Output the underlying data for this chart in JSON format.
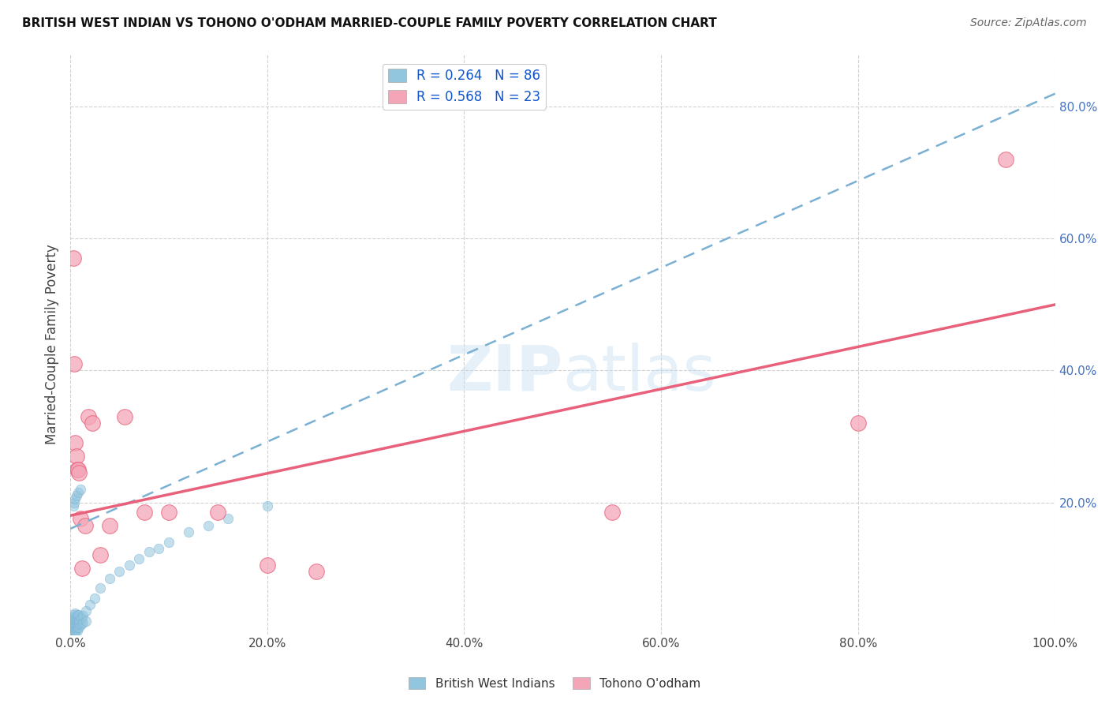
{
  "title": "BRITISH WEST INDIAN VS TOHONO O'ODHAM MARRIED-COUPLE FAMILY POVERTY CORRELATION CHART",
  "source": "Source: ZipAtlas.com",
  "ylabel": "Married-Couple Family Poverty",
  "xmin": 0.0,
  "xmax": 1.0,
  "ymin": 0.0,
  "ymax": 0.88,
  "xticks": [
    0.0,
    0.2,
    0.4,
    0.6,
    0.8,
    1.0
  ],
  "yticks": [
    0.2,
    0.4,
    0.6,
    0.8
  ],
  "ytick_labels": [
    "20.0%",
    "40.0%",
    "60.0%",
    "80.0%"
  ],
  "xtick_labels": [
    "0.0%",
    "20.0%",
    "40.0%",
    "60.0%",
    "80.0%",
    "100.0%"
  ],
  "legend1_label": "British West Indians",
  "legend2_label": "Tohono O'odham",
  "R1": "0.264",
  "N1": "86",
  "R2": "0.568",
  "N2": "23",
  "color_blue": "#92c5de",
  "color_pink": "#f4a6b8",
  "color_blue_line": "#7ab0d4",
  "color_pink_line": "#e8607a",
  "watermark_zip": "ZIP",
  "watermark_atlas": "atlas",
  "blue_scatter_x": [
    0.001,
    0.001,
    0.001,
    0.001,
    0.001,
    0.001,
    0.001,
    0.001,
    0.001,
    0.001,
    0.002,
    0.002,
    0.002,
    0.002,
    0.002,
    0.002,
    0.002,
    0.002,
    0.002,
    0.002,
    0.003,
    0.003,
    0.003,
    0.003,
    0.003,
    0.003,
    0.003,
    0.003,
    0.003,
    0.003,
    0.004,
    0.004,
    0.004,
    0.004,
    0.004,
    0.004,
    0.004,
    0.004,
    0.004,
    0.004,
    0.005,
    0.005,
    0.005,
    0.005,
    0.005,
    0.005,
    0.005,
    0.005,
    0.005,
    0.005,
    0.007,
    0.007,
    0.007,
    0.007,
    0.007,
    0.007,
    0.009,
    0.009,
    0.009,
    0.009,
    0.011,
    0.011,
    0.013,
    0.013,
    0.016,
    0.016,
    0.02,
    0.025,
    0.03,
    0.04,
    0.05,
    0.06,
    0.07,
    0.08,
    0.09,
    0.1,
    0.12,
    0.14,
    0.16,
    0.2,
    0.003,
    0.004,
    0.005,
    0.006,
    0.008,
    0.01
  ],
  "blue_scatter_y": [
    0.0,
    0.001,
    0.002,
    0.003,
    0.004,
    0.005,
    0.007,
    0.009,
    0.011,
    0.014,
    0.0,
    0.002,
    0.004,
    0.006,
    0.008,
    0.01,
    0.012,
    0.015,
    0.018,
    0.021,
    0.001,
    0.003,
    0.005,
    0.007,
    0.01,
    0.013,
    0.016,
    0.019,
    0.022,
    0.025,
    0.002,
    0.004,
    0.007,
    0.01,
    0.013,
    0.016,
    0.019,
    0.022,
    0.026,
    0.03,
    0.003,
    0.006,
    0.009,
    0.012,
    0.015,
    0.018,
    0.021,
    0.024,
    0.027,
    0.032,
    0.005,
    0.01,
    0.015,
    0.02,
    0.025,
    0.03,
    0.01,
    0.016,
    0.022,
    0.03,
    0.015,
    0.025,
    0.018,
    0.028,
    0.02,
    0.035,
    0.045,
    0.055,
    0.07,
    0.085,
    0.095,
    0.105,
    0.115,
    0.125,
    0.13,
    0.14,
    0.155,
    0.165,
    0.175,
    0.195,
    0.195,
    0.2,
    0.205,
    0.21,
    0.215,
    0.22
  ],
  "pink_scatter_x": [
    0.003,
    0.004,
    0.005,
    0.006,
    0.007,
    0.008,
    0.009,
    0.01,
    0.012,
    0.015,
    0.018,
    0.022,
    0.03,
    0.04,
    0.055,
    0.075,
    0.1,
    0.15,
    0.2,
    0.25,
    0.55,
    0.8,
    0.95
  ],
  "pink_scatter_y": [
    0.57,
    0.41,
    0.29,
    0.27,
    0.25,
    0.25,
    0.245,
    0.175,
    0.1,
    0.165,
    0.33,
    0.32,
    0.12,
    0.165,
    0.33,
    0.185,
    0.185,
    0.185,
    0.105,
    0.095,
    0.185,
    0.32,
    0.72
  ],
  "blue_line_x": [
    0.0,
    1.0
  ],
  "blue_line_y": [
    0.16,
    0.82
  ],
  "pink_line_x": [
    0.0,
    1.0
  ],
  "pink_line_y": [
    0.18,
    0.5
  ]
}
